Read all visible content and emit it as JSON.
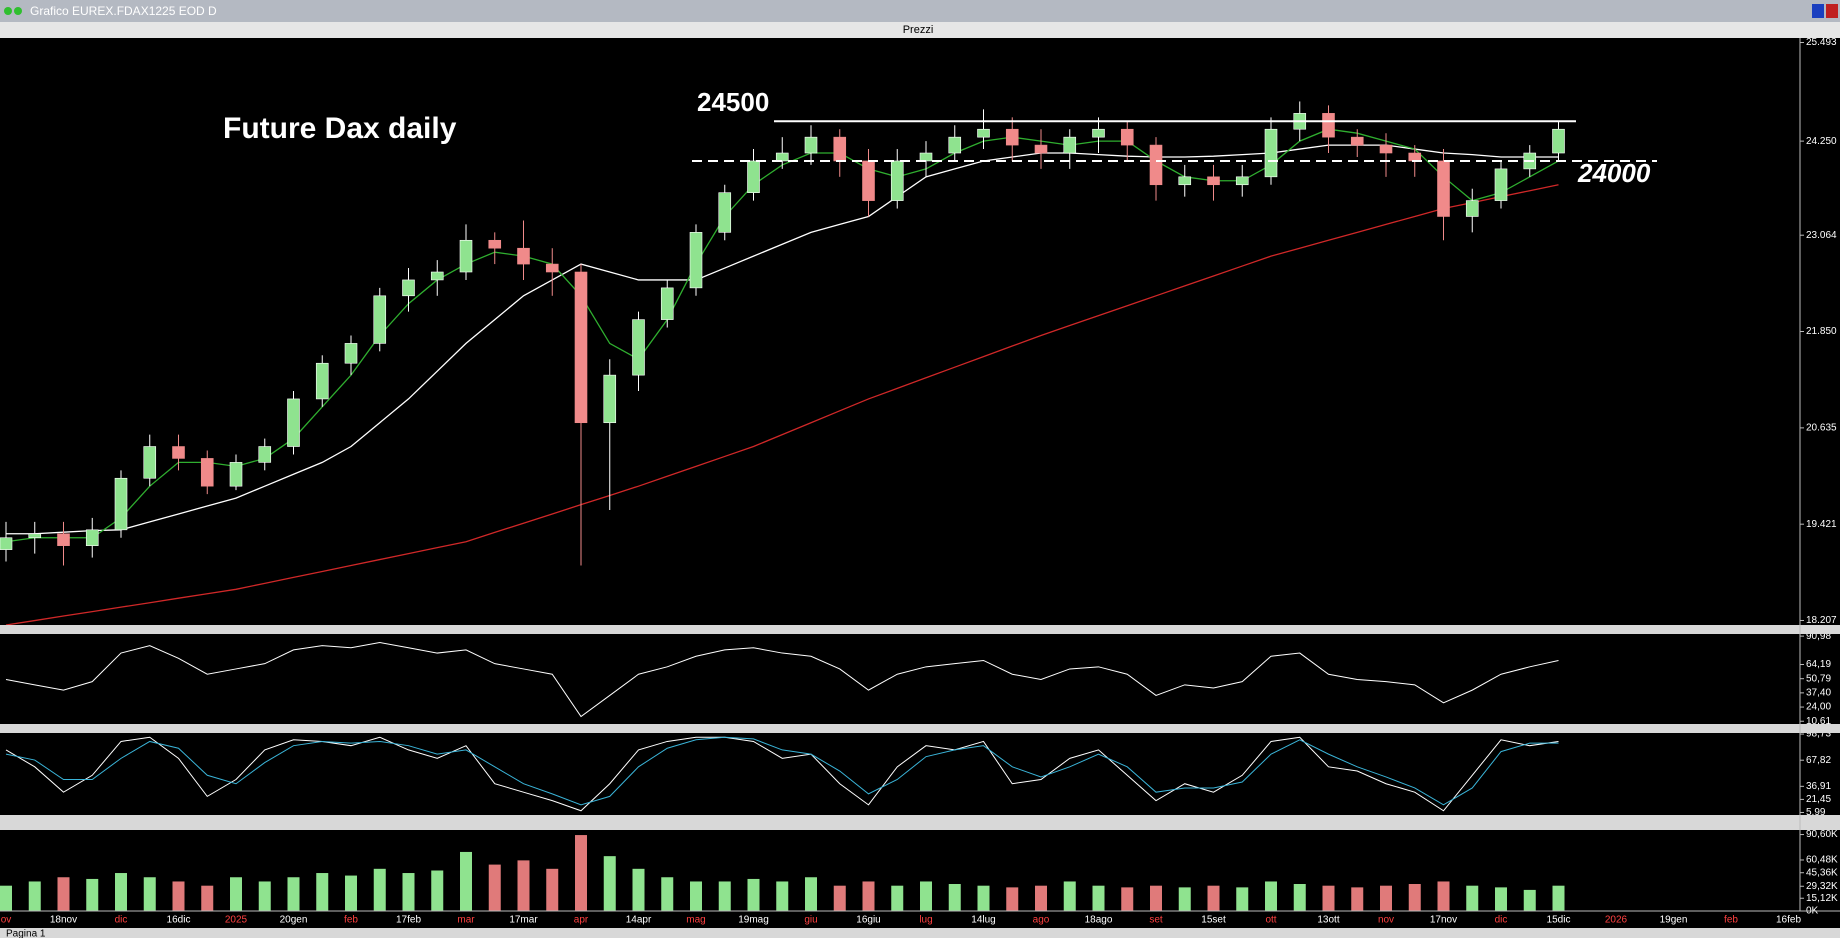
{
  "window": {
    "title": "Grafico EUREX.FDAX1225 EOD D",
    "panel_title": "Prezzi",
    "status": "Pagina 1"
  },
  "chart_data": [
    {
      "type": "candlestick",
      "title": "Future Dax daily",
      "up_color": "#8fe38f",
      "down_color": "#f08a8a",
      "open": [
        19100,
        19250,
        19300,
        19150,
        19350,
        20000,
        20400,
        20250,
        19900,
        20200,
        20400,
        21000,
        21450,
        21700,
        22300,
        22500,
        22600,
        23000,
        22900,
        22700,
        22600,
        20700,
        21300,
        22000,
        22400,
        23100,
        23600,
        24000,
        24100,
        24300,
        24000,
        23500,
        24000,
        24100,
        24300,
        24400,
        24200,
        24100,
        24300,
        24400,
        24200,
        23700,
        23800,
        23700,
        23800,
        24400,
        24600,
        24300,
        24200,
        24100,
        24000,
        23300,
        23500,
        23900,
        24100
      ],
      "high": [
        19450,
        19450,
        19450,
        19500,
        20100,
        20550,
        20550,
        20350,
        20300,
        20500,
        21100,
        21550,
        21800,
        22400,
        22650,
        22750,
        23200,
        23100,
        23250,
        22900,
        22700,
        21500,
        22100,
        22500,
        23200,
        23700,
        24150,
        24300,
        24450,
        24400,
        24150,
        24150,
        24250,
        24450,
        24650,
        24550,
        24400,
        24400,
        24550,
        24500,
        24300,
        23950,
        23950,
        23950,
        24550,
        24750,
        24700,
        24400,
        24350,
        24200,
        24150,
        23650,
        24000,
        24200,
        24500
      ],
      "low": [
        18950,
        19050,
        18900,
        19000,
        19250,
        19900,
        20100,
        19800,
        19850,
        20100,
        20300,
        20900,
        21300,
        21600,
        22100,
        22300,
        22500,
        22700,
        22500,
        22300,
        18900,
        19600,
        21100,
        21900,
        22300,
        23000,
        23500,
        23900,
        23950,
        23800,
        23300,
        23400,
        23800,
        24000,
        24150,
        24000,
        23900,
        23900,
        24100,
        24000,
        23500,
        23550,
        23500,
        23550,
        23700,
        24250,
        24100,
        24050,
        23800,
        23800,
        23000,
        23100,
        23400,
        23800,
        24000
      ],
      "close": [
        19250,
        19300,
        19150,
        19350,
        20000,
        20400,
        20250,
        19900,
        20200,
        20400,
        21000,
        21450,
        21700,
        22300,
        22500,
        22600,
        23000,
        22900,
        22700,
        22600,
        20700,
        21300,
        22000,
        22400,
        23100,
        23600,
        24000,
        24100,
        24300,
        24000,
        23500,
        24000,
        24100,
        24300,
        24400,
        24200,
        24100,
        24300,
        24400,
        24200,
        23700,
        23800,
        23700,
        23800,
        24400,
        24600,
        24300,
        24200,
        24100,
        24000,
        23300,
        23500,
        23900,
        24100,
        24400
      ],
      "overlays": [
        {
          "color": "#ffffff",
          "values": [
            19300,
            19300,
            19320,
            19340,
            19350,
            19450,
            19550,
            19650,
            19750,
            19900,
            20050,
            20200,
            20400,
            20700,
            21000,
            21350,
            21700,
            22000,
            22300,
            22500,
            22700,
            22600,
            22500,
            22500,
            22500,
            22650,
            22800,
            22950,
            23100,
            23200,
            23300,
            23550,
            23800,
            23900,
            24000,
            24050,
            24100,
            24100,
            24080,
            24060,
            24050,
            24050,
            24060,
            24080,
            24100,
            24150,
            24200,
            24200,
            24200,
            24150,
            24100,
            24080,
            24050,
            24050,
            24050
          ]
        },
        {
          "color": "#2fae2f",
          "values": [
            19200,
            19250,
            19250,
            19250,
            19500,
            19900,
            20200,
            20200,
            20150,
            20250,
            20500,
            20900,
            21300,
            21800,
            22200,
            22500,
            22700,
            22850,
            22800,
            22700,
            22300,
            21700,
            21500,
            22000,
            22700,
            23300,
            23700,
            23950,
            24100,
            24100,
            23900,
            23800,
            23900,
            24100,
            24250,
            24300,
            24250,
            24200,
            24250,
            24250,
            24000,
            23800,
            23750,
            23750,
            23950,
            24250,
            24400,
            24350,
            24250,
            24150,
            23800,
            23500,
            23600,
            23800,
            24000
          ]
        },
        {
          "color": "#d02828",
          "values": [
            18150,
            18206,
            18263,
            18319,
            18375,
            18431,
            18488,
            18544,
            18600,
            18675,
            18750,
            18825,
            18900,
            18975,
            19050,
            19125,
            19200,
            19317,
            19433,
            19550,
            19667,
            19783,
            19900,
            20025,
            20150,
            20275,
            20400,
            20550,
            20700,
            20850,
            21000,
            21133,
            21267,
            21400,
            21533,
            21667,
            21800,
            21925,
            22050,
            22175,
            22300,
            22425,
            22550,
            22675,
            22800,
            22900,
            23000,
            23100,
            23200,
            23300,
            23400,
            23475,
            23550,
            23625,
            23700
          ]
        }
      ],
      "levels": [
        {
          "value": 24500,
          "style": "solid"
        },
        {
          "value": 24000,
          "style": "dashed"
        }
      ],
      "ylim": [
        18150,
        25550
      ],
      "yticks": [
        {
          "value": 25493,
          "label": "25.493"
        },
        {
          "value": 24250,
          "label": "24.250"
        },
        {
          "value": 23064,
          "label": "23.064"
        },
        {
          "value": 21850,
          "label": "21.850"
        },
        {
          "value": 20635,
          "label": "20.635"
        },
        {
          "value": 19421,
          "label": "19.421"
        },
        {
          "value": 18207,
          "label": "18.207"
        }
      ]
    },
    {
      "type": "line",
      "series": [
        {
          "color": "#ffffff",
          "values": [
            50,
            45,
            40,
            48,
            75,
            82,
            70,
            55,
            60,
            65,
            78,
            82,
            80,
            85,
            80,
            75,
            78,
            65,
            60,
            55,
            15,
            35,
            55,
            62,
            72,
            78,
            80,
            75,
            72,
            60,
            40,
            55,
            62,
            65,
            68,
            55,
            50,
            60,
            62,
            55,
            35,
            45,
            42,
            48,
            72,
            75,
            55,
            50,
            48,
            45,
            28,
            40,
            55,
            62,
            68
          ]
        }
      ],
      "ylim": [
        8,
        93
      ],
      "yticks": [
        {
          "value": 90.98,
          "label": "90,98"
        },
        {
          "value": 64.19,
          "label": "64,19"
        },
        {
          "value": 50.79,
          "label": "50,79"
        },
        {
          "value": 37.4,
          "label": "37,40"
        },
        {
          "value": 24,
          "label": "24,00"
        },
        {
          "value": 10.61,
          "label": "10,61"
        }
      ]
    },
    {
      "type": "line",
      "series": [
        {
          "color": "#ffffff",
          "values": [
            80,
            60,
            30,
            50,
            90,
            95,
            70,
            25,
            45,
            80,
            92,
            90,
            85,
            95,
            80,
            70,
            85,
            40,
            30,
            20,
            8,
            40,
            80,
            90,
            95,
            95,
            90,
            70,
            75,
            40,
            15,
            60,
            85,
            80,
            90,
            40,
            45,
            70,
            80,
            50,
            20,
            40,
            30,
            50,
            90,
            95,
            60,
            55,
            40,
            30,
            8,
            50,
            92,
            85,
            90
          ]
        },
        {
          "color": "#3ab4d8",
          "values": [
            75,
            68,
            45,
            45,
            70,
            90,
            82,
            50,
            40,
            65,
            85,
            90,
            88,
            90,
            85,
            75,
            80,
            60,
            40,
            28,
            15,
            25,
            60,
            82,
            92,
            95,
            93,
            80,
            75,
            55,
            28,
            45,
            72,
            80,
            85,
            60,
            48,
            60,
            75,
            60,
            30,
            35,
            35,
            42,
            75,
            92,
            75,
            60,
            48,
            35,
            15,
            35,
            78,
            88,
            88
          ]
        }
      ],
      "ylim": [
        3,
        100
      ],
      "yticks": [
        {
          "value": 98.73,
          "label": "98,73"
        },
        {
          "value": 67.82,
          "label": "67,82"
        },
        {
          "value": 36.91,
          "label": "36,91"
        },
        {
          "value": 21.45,
          "label": "21,45"
        },
        {
          "value": 5.99,
          "label": "5,99"
        }
      ]
    },
    {
      "type": "bar",
      "up_color": "#8fe38f",
      "down_color": "#e07a7a",
      "values": [
        30,
        35,
        40,
        38,
        45,
        40,
        35,
        30,
        40,
        35,
        40,
        45,
        42,
        50,
        45,
        48,
        70,
        55,
        60,
        50,
        90,
        65,
        50,
        40,
        35,
        35,
        38,
        35,
        40,
        30,
        35,
        30,
        35,
        32,
        30,
        28,
        30,
        35,
        30,
        28,
        30,
        28,
        30,
        28,
        35,
        32,
        30,
        28,
        30,
        32,
        35,
        30,
        28,
        25,
        30
      ],
      "ylim": [
        0,
        96
      ],
      "yticks": [
        {
          "value": 90.6,
          "label": "90,60K"
        },
        {
          "value": 60.48,
          "label": "60,48K"
        },
        {
          "value": 45.36,
          "label": "45,36K"
        },
        {
          "value": 29.32,
          "label": "29,32K"
        },
        {
          "value": 15.12,
          "label": "15,12K"
        },
        {
          "value": 0,
          "label": "0K"
        }
      ],
      "xaxis_labels": [
        "ov",
        "18nov",
        "dic",
        "16dic",
        "2025",
        "20gen",
        "feb",
        "17feb",
        "mar",
        "17mar",
        "apr",
        "14apr",
        "mag",
        "19mag",
        "giu",
        "16giu",
        "lug",
        "14lug",
        "ago",
        "18ago",
        "set",
        "15set",
        "ott",
        "13ott",
        "nov",
        "17nov",
        "dic",
        "15dic",
        "2026",
        "19gen",
        "feb",
        "16feb"
      ],
      "month_color": "#ff4040",
      "day_color": "#ffffff"
    }
  ]
}
